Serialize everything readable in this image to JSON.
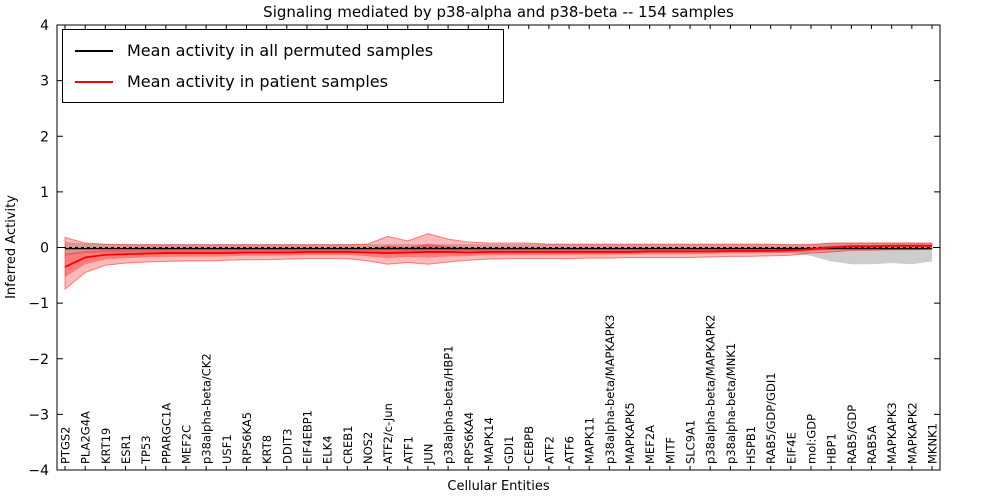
{
  "title": "Signaling mediated by p38-alpha and p38-beta -- 154 samples",
  "legend": {
    "permuted_label": "Mean activity in all permuted samples",
    "patient_label": "Mean activity in patient samples"
  },
  "axes": {
    "ylabel": "Inferred Activity",
    "xlabel": "Cellular Entities",
    "yticks": [
      -4,
      -3,
      -2,
      -1,
      0,
      1,
      2,
      3,
      4
    ]
  },
  "colors": {
    "permuted_line": "#000000",
    "patient_line": "#ff0000",
    "patient_band": "rgba(255,0,0,0.27)",
    "patient_band_inner": "rgba(255,0,0,0.33)",
    "patient_band_edge": "rgba(255,0,0,0.45)",
    "permuted_band": "rgba(130,130,130,0.40)",
    "zero_line": "#000000"
  },
  "chart_data": {
    "type": "line",
    "title": "Signaling mediated by p38-alpha and p38-beta -- 154 samples",
    "xlabel": "Cellular Entities",
    "ylabel": "Inferred Activity",
    "ylim": [
      -4,
      4
    ],
    "grid": false,
    "legend_position": "upper left",
    "categories": [
      "PTGS2",
      "PLA2G4A",
      "KRT19",
      "ESR1",
      "TP53",
      "PPARGC1A",
      "MEF2C",
      "p38alpha-beta/CK2",
      "USF1",
      "RPS6KA5",
      "KRT8",
      "DDIT3",
      "EIF4EBP1",
      "ELK4",
      "CREB1",
      "NOS2",
      "ATF2/c-Jun",
      "ATF1",
      "JUN",
      "p38alpha-beta/HBP1",
      "RPS6KA4",
      "MAPK14",
      "GDI1",
      "CEBPB",
      "ATF2",
      "ATF6",
      "MAPK11",
      "p38alpha-beta/MAPKAPK3",
      "MAPKAPK5",
      "MEF2A",
      "MITF",
      "SLC9A1",
      "p38alpha-beta/MAPKAPK2",
      "p38alpha-beta/MNK1",
      "HSPB1",
      "RAB5/GDP/GDI1",
      "EIF4E",
      "mol:GDP",
      "HBP1",
      "RAB5/GDP",
      "RAB5A",
      "MAPKAPK3",
      "MAPKAPK2",
      "MKNK1"
    ],
    "series": [
      {
        "name": "Mean activity in all permuted samples",
        "color": "#000000",
        "values": [
          -0.02,
          -0.02,
          -0.02,
          -0.02,
          -0.02,
          -0.02,
          -0.02,
          -0.02,
          -0.02,
          -0.02,
          -0.02,
          -0.02,
          -0.02,
          -0.02,
          -0.02,
          -0.02,
          -0.02,
          -0.02,
          -0.02,
          -0.02,
          -0.02,
          -0.02,
          -0.02,
          -0.02,
          -0.02,
          -0.02,
          -0.02,
          -0.02,
          -0.02,
          -0.02,
          -0.02,
          -0.02,
          -0.02,
          -0.02,
          -0.02,
          -0.02,
          -0.02,
          -0.02,
          -0.02,
          -0.02,
          -0.02,
          -0.02,
          -0.02,
          -0.02
        ]
      },
      {
        "name": "Mean activity in patient samples",
        "color": "#ff0000",
        "values": [
          -0.35,
          -0.18,
          -0.13,
          -0.12,
          -0.11,
          -0.1,
          -0.1,
          -0.1,
          -0.1,
          -0.09,
          -0.09,
          -0.09,
          -0.08,
          -0.08,
          -0.08,
          -0.09,
          -0.1,
          -0.09,
          -0.08,
          -0.08,
          -0.09,
          -0.08,
          -0.08,
          -0.08,
          -0.08,
          -0.08,
          -0.08,
          -0.08,
          -0.08,
          -0.07,
          -0.07,
          -0.07,
          -0.07,
          -0.06,
          -0.06,
          -0.06,
          -0.05,
          -0.03,
          0.0,
          0.02,
          0.02,
          0.03,
          0.03,
          0.03
        ]
      }
    ],
    "bands": [
      {
        "name": "permuted-samples-range",
        "upper": [
          0.1,
          0.07,
          0.06,
          0.06,
          0.06,
          0.06,
          0.06,
          0.06,
          0.06,
          0.06,
          0.06,
          0.06,
          0.06,
          0.06,
          0.06,
          0.06,
          0.06,
          0.06,
          0.06,
          0.06,
          0.06,
          0.06,
          0.06,
          0.06,
          0.06,
          0.06,
          0.06,
          0.06,
          0.06,
          0.06,
          0.06,
          0.06,
          0.06,
          0.06,
          0.06,
          0.06,
          0.06,
          0.07,
          0.08,
          0.09,
          0.09,
          0.09,
          0.09,
          0.08
        ],
        "lower": [
          -0.15,
          -0.1,
          -0.09,
          -0.09,
          -0.09,
          -0.09,
          -0.09,
          -0.09,
          -0.09,
          -0.09,
          -0.09,
          -0.09,
          -0.09,
          -0.09,
          -0.09,
          -0.09,
          -0.09,
          -0.09,
          -0.09,
          -0.09,
          -0.09,
          -0.09,
          -0.09,
          -0.09,
          -0.09,
          -0.09,
          -0.09,
          -0.09,
          -0.09,
          -0.09,
          -0.09,
          -0.09,
          -0.09,
          -0.09,
          -0.09,
          -0.09,
          -0.1,
          -0.15,
          -0.25,
          -0.3,
          -0.3,
          -0.28,
          -0.3,
          -0.25
        ]
      },
      {
        "name": "patient-samples-range",
        "upper": [
          0.18,
          0.08,
          0.06,
          0.05,
          0.05,
          0.05,
          0.05,
          0.05,
          0.05,
          0.05,
          0.05,
          0.05,
          0.05,
          0.05,
          0.05,
          0.06,
          0.2,
          0.12,
          0.25,
          0.15,
          0.1,
          0.08,
          0.08,
          0.08,
          0.06,
          0.06,
          0.06,
          0.06,
          0.06,
          0.06,
          0.06,
          0.06,
          0.06,
          0.06,
          0.06,
          0.06,
          0.05,
          0.05,
          0.08,
          0.08,
          0.08,
          0.08,
          0.08,
          0.08
        ],
        "lower": [
          -0.75,
          -0.45,
          -0.32,
          -0.28,
          -0.26,
          -0.25,
          -0.24,
          -0.24,
          -0.23,
          -0.22,
          -0.22,
          -0.21,
          -0.2,
          -0.2,
          -0.2,
          -0.24,
          -0.3,
          -0.27,
          -0.3,
          -0.26,
          -0.23,
          -0.21,
          -0.2,
          -0.2,
          -0.2,
          -0.2,
          -0.19,
          -0.19,
          -0.18,
          -0.18,
          -0.18,
          -0.18,
          -0.17,
          -0.16,
          -0.16,
          -0.15,
          -0.14,
          -0.1,
          -0.08,
          -0.05,
          -0.05,
          -0.04,
          -0.04,
          -0.03
        ]
      }
    ]
  }
}
